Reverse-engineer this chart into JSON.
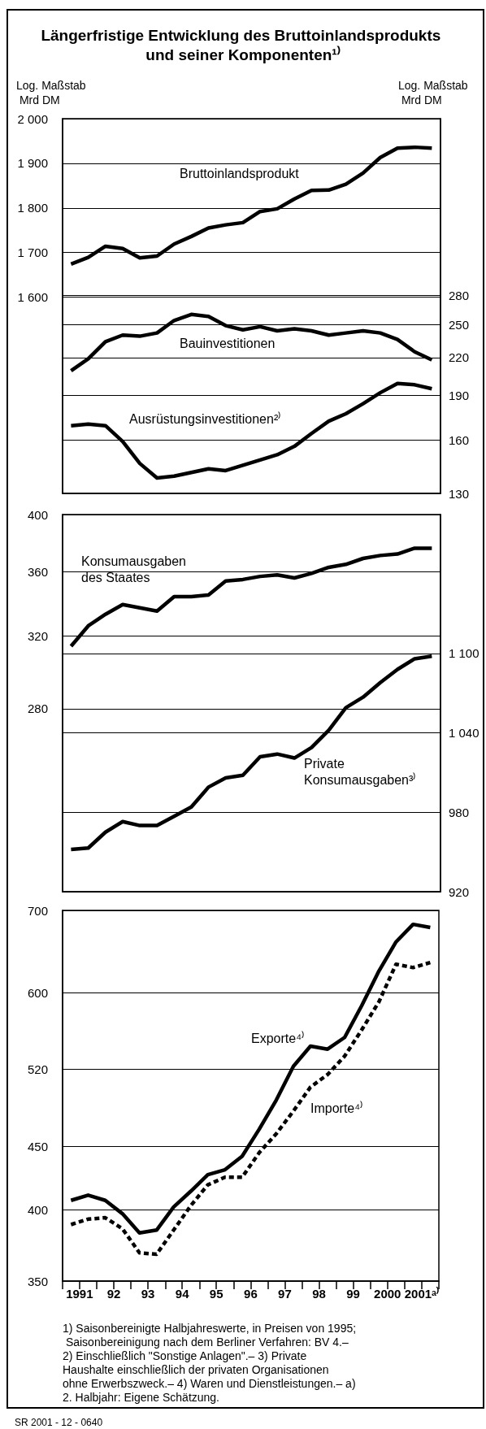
{
  "chart_data": [
    {
      "type": "line",
      "title": "Längerfristige Entwicklung des Bruttoinlandsprodukts und seiner Komponenten¹⁾",
      "ylabel": "Log. Maßstab Mrd DM",
      "y2label": "Log. Maßstab Mrd DM",
      "x": [
        "1991-04",
        "1991-10",
        "1992-04",
        "1992-10",
        "1993-04",
        "1993-10",
        "1994-04",
        "1994-10",
        "1995-04",
        "1995-10",
        "1996-04",
        "1996-10",
        "1997-04",
        "1997-10",
        "1998-04",
        "1998-10",
        "1999-04",
        "1999-10",
        "2000-04",
        "2000-10",
        "2001-04",
        "2001-10"
      ],
      "xlim": [
        "1991-01",
        "2002-01"
      ],
      "ylim": [
        1160,
        2000
      ],
      "yticks": [
        {
          "value": 1600,
          "label": "1 600"
        },
        {
          "value": 1700,
          "label": "1 700"
        },
        {
          "value": 1800,
          "label": "1 800"
        },
        {
          "value": 1900,
          "label": "1 900"
        },
        {
          "value": 2000,
          "label": "2 000"
        }
      ],
      "y2lim": [
        130,
        555
      ],
      "y2ticks": [
        130,
        160,
        190,
        220,
        250,
        280
      ],
      "log": "y2",
      "grid": "y",
      "tick_labels": "y",
      "series": [
        {
          "name": "Bruttoinlandsprodukt",
          "color": "#000000",
          "values": [
            1674,
            1689,
            1714,
            1709,
            1688,
            1692,
            1719,
            1736,
            1755,
            1762,
            1767,
            1792,
            1798,
            1820,
            1839,
            1840,
            1853,
            1878,
            1913,
            1934,
            1936,
            1934
          ]
        },
        {
          "name": "Bauinvestitionen",
          "color": "#000000",
          "axis": "y2",
          "values": [
            209,
            219,
            234,
            240,
            239,
            242,
            254,
            260,
            258,
            249,
            245,
            248,
            244,
            246,
            244,
            240,
            242,
            244,
            242,
            236,
            225,
            218
          ]
        },
        {
          "name": "Ausrüstungsinvestitionen²⁾",
          "color": "#000000",
          "axis": "y2",
          "values": [
            169,
            170,
            169,
            159,
            146,
            138,
            139,
            141,
            143,
            142,
            145,
            148,
            151,
            156,
            164,
            172,
            177,
            184,
            192,
            199,
            198,
            195
          ]
        }
      ]
    },
    {
      "type": "line",
      "x": [
        "1991-04",
        "1991-10",
        "1992-04",
        "1992-10",
        "1993-04",
        "1993-10",
        "1994-04",
        "1994-10",
        "1995-04",
        "1995-10",
        "1996-04",
        "1996-10",
        "1997-04",
        "1997-10",
        "1998-04",
        "1998-10",
        "1999-04",
        "1999-10",
        "2000-04",
        "2000-10",
        "2001-04",
        "2001-10"
      ],
      "xlim": [
        "1991-01",
        "2002-01"
      ],
      "ylim": [
        200,
        400
      ],
      "yticks": [
        280,
        320,
        360,
        400
      ],
      "y2lim": [
        920,
        1205
      ],
      "y2ticks": [
        920,
        980,
        {
          "value": 1040,
          "label": "1 040"
        },
        {
          "value": 1100,
          "label": "1 100"
        }
      ],
      "log": "y",
      "grid": "y",
      "tick_labels": "y",
      "series": [
        {
          "name": "Konsumausgaben des Staates",
          "color": "#000000",
          "values": [
            314,
            326,
            333,
            339,
            337,
            335,
            344,
            344,
            345,
            354,
            355,
            357,
            358,
            356,
            359,
            363,
            365,
            369,
            371,
            372,
            376,
            376
          ]
        },
        {
          "name": "Private Konsumausgaben³⁾",
          "color": "#000000",
          "axis": "y2",
          "values": [
            952,
            953,
            965,
            973,
            970,
            970,
            977,
            984,
            999,
            1006,
            1008,
            1022,
            1024,
            1021,
            1029,
            1042,
            1059,
            1067,
            1078,
            1088,
            1096,
            1098
          ]
        }
      ]
    },
    {
      "type": "line",
      "x": [
        "1991-04",
        "1991-10",
        "1992-04",
        "1992-10",
        "1993-04",
        "1993-10",
        "1994-04",
        "1994-10",
        "1995-04",
        "1995-10",
        "1996-04",
        "1996-10",
        "1997-04",
        "1997-10",
        "1998-04",
        "1998-10",
        "1999-04",
        "1999-10",
        "2000-04",
        "2000-10",
        "2001-04",
        "2001-10"
      ],
      "xlim": [
        "1991-01",
        "2002-01"
      ],
      "xticks": [
        {
          "value": "1991-01",
          "label": null
        },
        {
          "value": "1991-07",
          "label": "1991"
        },
        {
          "value": "1992-01",
          "label": null
        },
        {
          "value": "1992-07",
          "label": "92"
        },
        {
          "value": "1993-01",
          "label": null
        },
        {
          "value": "1993-07",
          "label": "93"
        },
        {
          "value": "1994-01",
          "label": null
        },
        {
          "value": "1994-07",
          "label": "94"
        },
        {
          "value": "1995-01",
          "label": null
        },
        {
          "value": "1995-07",
          "label": "95"
        },
        {
          "value": "1996-01",
          "label": null
        },
        {
          "value": "1996-07",
          "label": "96"
        },
        {
          "value": "1997-01",
          "label": null
        },
        {
          "value": "1997-07",
          "label": "97"
        },
        {
          "value": "1998-01",
          "label": null
        },
        {
          "value": "1998-07",
          "label": "98"
        },
        {
          "value": "1999-01",
          "label": null
        },
        {
          "value": "1999-07",
          "label": "99"
        },
        {
          "value": "2000-01",
          "label": null
        },
        {
          "value": "2000-07",
          "label": "2000"
        },
        {
          "value": "2001-01",
          "label": null
        },
        {
          "value": "2001-07",
          "label": "2001ᵃ⁾"
        },
        {
          "value": "2002-01",
          "label": null
        }
      ],
      "ylim": [
        350,
        700
      ],
      "yticks": [
        350,
        400,
        450,
        520,
        600,
        700
      ],
      "log": "y",
      "grid": "y",
      "annotations": [
        "1) Saisonbereinigte Halbjahreswerte, in Preisen von 1995; Saisonbereinigung nach dem Berliner Verfahren: BV 4.– 2) Einschließlich \"Sonstige Anlagen\".– 3) Private Haushalte einschließlich der privaten Organisationen ohne Erwerbszweck.– 4) Waren und Dienstleistungen.– a) 2. Halbjahr: Eigene Schätzung.",
        "SR 2001 - 12 - 0640"
      ],
      "series": [
        {
          "name": "Exporte⁴⁾",
          "color": "#000000",
          "values": [
            407,
            411,
            407,
            397,
            383,
            385,
            402,
            414,
            427,
            431,
            442,
            465,
            491,
            523,
            543,
            540,
            552,
            586,
            625,
            660,
            682,
            678
          ]
        },
        {
          "name": "Importe⁴⁾",
          "color": "#000000",
          "line_style": "dashed",
          "values": [
            389,
            393,
            394,
            386,
            369,
            368,
            385,
            403,
            419,
            425,
            425,
            445,
            461,
            481,
            503,
            515,
            533,
            560,
            590,
            633,
            629,
            635
          ]
        }
      ]
    }
  ]
}
